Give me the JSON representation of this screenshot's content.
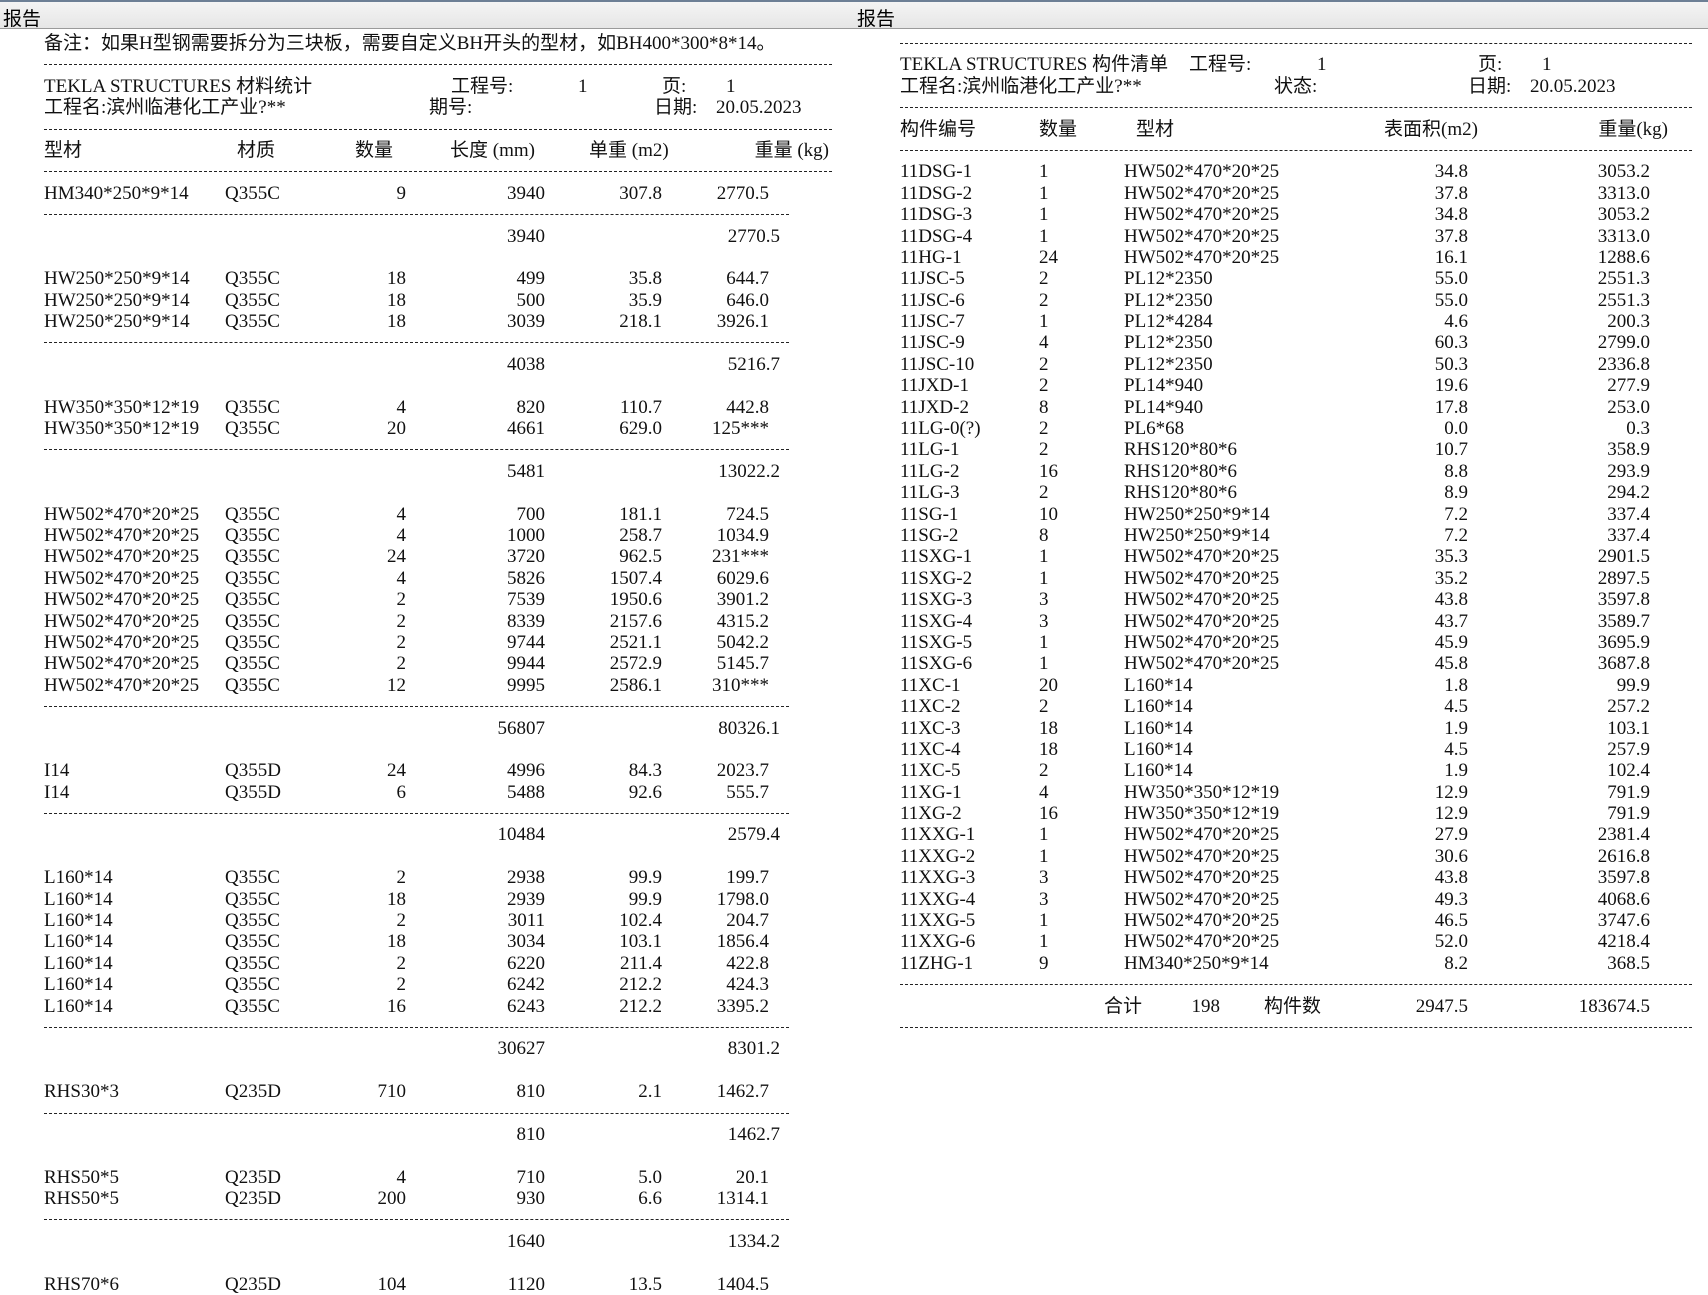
{
  "window": {
    "left_title": "报告",
    "right_title": "报告"
  },
  "material_report": {
    "note": "备注：如果H型钢需要拆分为三块板，需要自定义BH开头的型材，如BH400*300*8*14。",
    "title": "TEKLA STRUCTURES 材料统计",
    "project_no_label": "工程号:",
    "project_no": "1",
    "page_label": "页:",
    "page": "1",
    "project_name": "工程名:滨州临港化工产业?**",
    "phase_label": "期号:",
    "date_label": "日期:",
    "date": "20.05.2023",
    "headers": [
      "型材",
      "材质",
      "数量",
      "长度 (mm)",
      "单重 (m2)",
      "重量 (kg)"
    ],
    "sections": [
      {
        "rows": [
          [
            "HM340*250*9*14",
            "Q355C",
            "9",
            "3940",
            "307.8",
            "2770.5"
          ]
        ],
        "subtotal": {
          "length": "3940",
          "weight": "2770.5"
        }
      },
      {
        "rows": [
          [
            "HW250*250*9*14",
            "Q355C",
            "18",
            "499",
            "35.8",
            "644.7"
          ],
          [
            "HW250*250*9*14",
            "Q355C",
            "18",
            "500",
            "35.9",
            "646.0"
          ],
          [
            "HW250*250*9*14",
            "Q355C",
            "18",
            "3039",
            "218.1",
            "3926.1"
          ]
        ],
        "subtotal": {
          "length": "4038",
          "weight": "5216.7"
        }
      },
      {
        "rows": [
          [
            "HW350*350*12*19",
            "Q355C",
            "4",
            "820",
            "110.7",
            "442.8"
          ],
          [
            "HW350*350*12*19",
            "Q355C",
            "20",
            "4661",
            "629.0",
            "125***"
          ]
        ],
        "subtotal": {
          "length": "5481",
          "weight": "13022.2"
        }
      },
      {
        "rows": [
          [
            "HW502*470*20*25",
            "Q355C",
            "4",
            "700",
            "181.1",
            "724.5"
          ],
          [
            "HW502*470*20*25",
            "Q355C",
            "4",
            "1000",
            "258.7",
            "1034.9"
          ],
          [
            "HW502*470*20*25",
            "Q355C",
            "24",
            "3720",
            "962.5",
            "231***"
          ],
          [
            "HW502*470*20*25",
            "Q355C",
            "4",
            "5826",
            "1507.4",
            "6029.6"
          ],
          [
            "HW502*470*20*25",
            "Q355C",
            "2",
            "7539",
            "1950.6",
            "3901.2"
          ],
          [
            "HW502*470*20*25",
            "Q355C",
            "2",
            "8339",
            "2157.6",
            "4315.2"
          ],
          [
            "HW502*470*20*25",
            "Q355C",
            "2",
            "9744",
            "2521.1",
            "5042.2"
          ],
          [
            "HW502*470*20*25",
            "Q355C",
            "2",
            "9944",
            "2572.9",
            "5145.7"
          ],
          [
            "HW502*470*20*25",
            "Q355C",
            "12",
            "9995",
            "2586.1",
            "310***"
          ]
        ],
        "subtotal": {
          "length": "56807",
          "weight": "80326.1"
        }
      },
      {
        "rows": [
          [
            "I14",
            "Q355D",
            "24",
            "4996",
            "84.3",
            "2023.7"
          ],
          [
            "I14",
            "Q355D",
            "6",
            "5488",
            "92.6",
            "555.7"
          ]
        ],
        "subtotal": {
          "length": "10484",
          "weight": "2579.4"
        }
      },
      {
        "rows": [
          [
            "L160*14",
            "Q355C",
            "2",
            "2938",
            "99.9",
            "199.7"
          ],
          [
            "L160*14",
            "Q355C",
            "18",
            "2939",
            "99.9",
            "1798.0"
          ],
          [
            "L160*14",
            "Q355C",
            "2",
            "3011",
            "102.4",
            "204.7"
          ],
          [
            "L160*14",
            "Q355C",
            "18",
            "3034",
            "103.1",
            "1856.4"
          ],
          [
            "L160*14",
            "Q355C",
            "2",
            "6220",
            "211.4",
            "422.8"
          ],
          [
            "L160*14",
            "Q355C",
            "2",
            "6242",
            "212.2",
            "424.3"
          ],
          [
            "L160*14",
            "Q355C",
            "16",
            "6243",
            "212.2",
            "3395.2"
          ]
        ],
        "subtotal": {
          "length": "30627",
          "weight": "8301.2"
        }
      },
      {
        "rows": [
          [
            "RHS30*3",
            "Q235D",
            "710",
            "810",
            "2.1",
            "1462.7"
          ]
        ],
        "subtotal": {
          "length": "810",
          "weight": "1462.7"
        }
      },
      {
        "rows": [
          [
            "RHS50*5",
            "Q235D",
            "4",
            "710",
            "5.0",
            "20.1"
          ],
          [
            "RHS50*5",
            "Q235D",
            "200",
            "930",
            "6.6",
            "1314.1"
          ]
        ],
        "subtotal": {
          "length": "1640",
          "weight": "1334.2"
        }
      },
      {
        "rows": [
          [
            "RHS70*6",
            "Q235D",
            "104",
            "1120",
            "13.5",
            "1404.5"
          ]
        ]
      }
    ]
  },
  "assembly_report": {
    "title": "TEKLA STRUCTURES 构件清单",
    "project_no_label": "工程号:",
    "project_no": "1",
    "page_label": "页:",
    "page": "1",
    "project_name": "工程名:滨州临港化工产业?**",
    "status_label": "状态:",
    "date_label": "日期:",
    "date": "20.05.2023",
    "headers": [
      "构件编号",
      "数量",
      "型材",
      "表面积(m2)",
      "重量(kg)"
    ],
    "rows": [
      [
        "11DSG-1",
        "1",
        "HW502*470*20*25",
        "34.8",
        "3053.2"
      ],
      [
        "11DSG-2",
        "1",
        "HW502*470*20*25",
        "37.8",
        "3313.0"
      ],
      [
        "11DSG-3",
        "1",
        "HW502*470*20*25",
        "34.8",
        "3053.2"
      ],
      [
        "11DSG-4",
        "1",
        "HW502*470*20*25",
        "37.8",
        "3313.0"
      ],
      [
        "11HG-1",
        "24",
        "HW502*470*20*25",
        "16.1",
        "1288.6"
      ],
      [
        "11JSC-5",
        "2",
        "PL12*2350",
        "55.0",
        "2551.3"
      ],
      [
        "11JSC-6",
        "2",
        "PL12*2350",
        "55.0",
        "2551.3"
      ],
      [
        "11JSC-7",
        "1",
        "PL12*4284",
        "4.6",
        "200.3"
      ],
      [
        "11JSC-9",
        "4",
        "PL12*2350",
        "60.3",
        "2799.0"
      ],
      [
        "11JSC-10",
        "2",
        "PL12*2350",
        "50.3",
        "2336.8"
      ],
      [
        "11JXD-1",
        "2",
        "PL14*940",
        "19.6",
        "277.9"
      ],
      [
        "11JXD-2",
        "8",
        "PL14*940",
        "17.8",
        "253.0"
      ],
      [
        "11LG-0(?)",
        "2",
        "PL6*68",
        "0.0",
        "0.3"
      ],
      [
        "11LG-1",
        "2",
        "RHS120*80*6",
        "10.7",
        "358.9"
      ],
      [
        "11LG-2",
        "16",
        "RHS120*80*6",
        "8.8",
        "293.9"
      ],
      [
        "11LG-3",
        "2",
        "RHS120*80*6",
        "8.9",
        "294.2"
      ],
      [
        "11SG-1",
        "10",
        "HW250*250*9*14",
        "7.2",
        "337.4"
      ],
      [
        "11SG-2",
        "8",
        "HW250*250*9*14",
        "7.2",
        "337.4"
      ],
      [
        "11SXG-1",
        "1",
        "HW502*470*20*25",
        "35.3",
        "2901.5"
      ],
      [
        "11SXG-2",
        "1",
        "HW502*470*20*25",
        "35.2",
        "2897.5"
      ],
      [
        "11SXG-3",
        "3",
        "HW502*470*20*25",
        "43.8",
        "3597.8"
      ],
      [
        "11SXG-4",
        "3",
        "HW502*470*20*25",
        "43.7",
        "3589.7"
      ],
      [
        "11SXG-5",
        "1",
        "HW502*470*20*25",
        "45.9",
        "3695.9"
      ],
      [
        "11SXG-6",
        "1",
        "HW502*470*20*25",
        "45.8",
        "3687.8"
      ],
      [
        "11XC-1",
        "20",
        "L160*14",
        "1.8",
        "99.9"
      ],
      [
        "11XC-2",
        "2",
        "L160*14",
        "4.5",
        "257.2"
      ],
      [
        "11XC-3",
        "18",
        "L160*14",
        "1.9",
        "103.1"
      ],
      [
        "11XC-4",
        "18",
        "L160*14",
        "4.5",
        "257.9"
      ],
      [
        "11XC-5",
        "2",
        "L160*14",
        "1.9",
        "102.4"
      ],
      [
        "11XG-1",
        "4",
        "HW350*350*12*19",
        "12.9",
        "791.9"
      ],
      [
        "11XG-2",
        "16",
        "HW350*350*12*19",
        "12.9",
        "791.9"
      ],
      [
        "11XXG-1",
        "1",
        "HW502*470*20*25",
        "27.9",
        "2381.4"
      ],
      [
        "11XXG-2",
        "1",
        "HW502*470*20*25",
        "30.6",
        "2616.8"
      ],
      [
        "11XXG-3",
        "3",
        "HW502*470*20*25",
        "43.8",
        "3597.8"
      ],
      [
        "11XXG-4",
        "3",
        "HW502*470*20*25",
        "49.3",
        "4068.6"
      ],
      [
        "11XXG-5",
        "1",
        "HW502*470*20*25",
        "46.5",
        "3747.6"
      ],
      [
        "11XXG-6",
        "1",
        "HW502*470*20*25",
        "52.0",
        "4218.4"
      ],
      [
        "11ZHG-1",
        "9",
        "HM340*250*9*14",
        "8.2",
        "368.5"
      ]
    ],
    "total": {
      "label": "合计",
      "qty": "198",
      "count_label": "构件数",
      "area": "2947.5",
      "weight": "183674.5"
    }
  }
}
